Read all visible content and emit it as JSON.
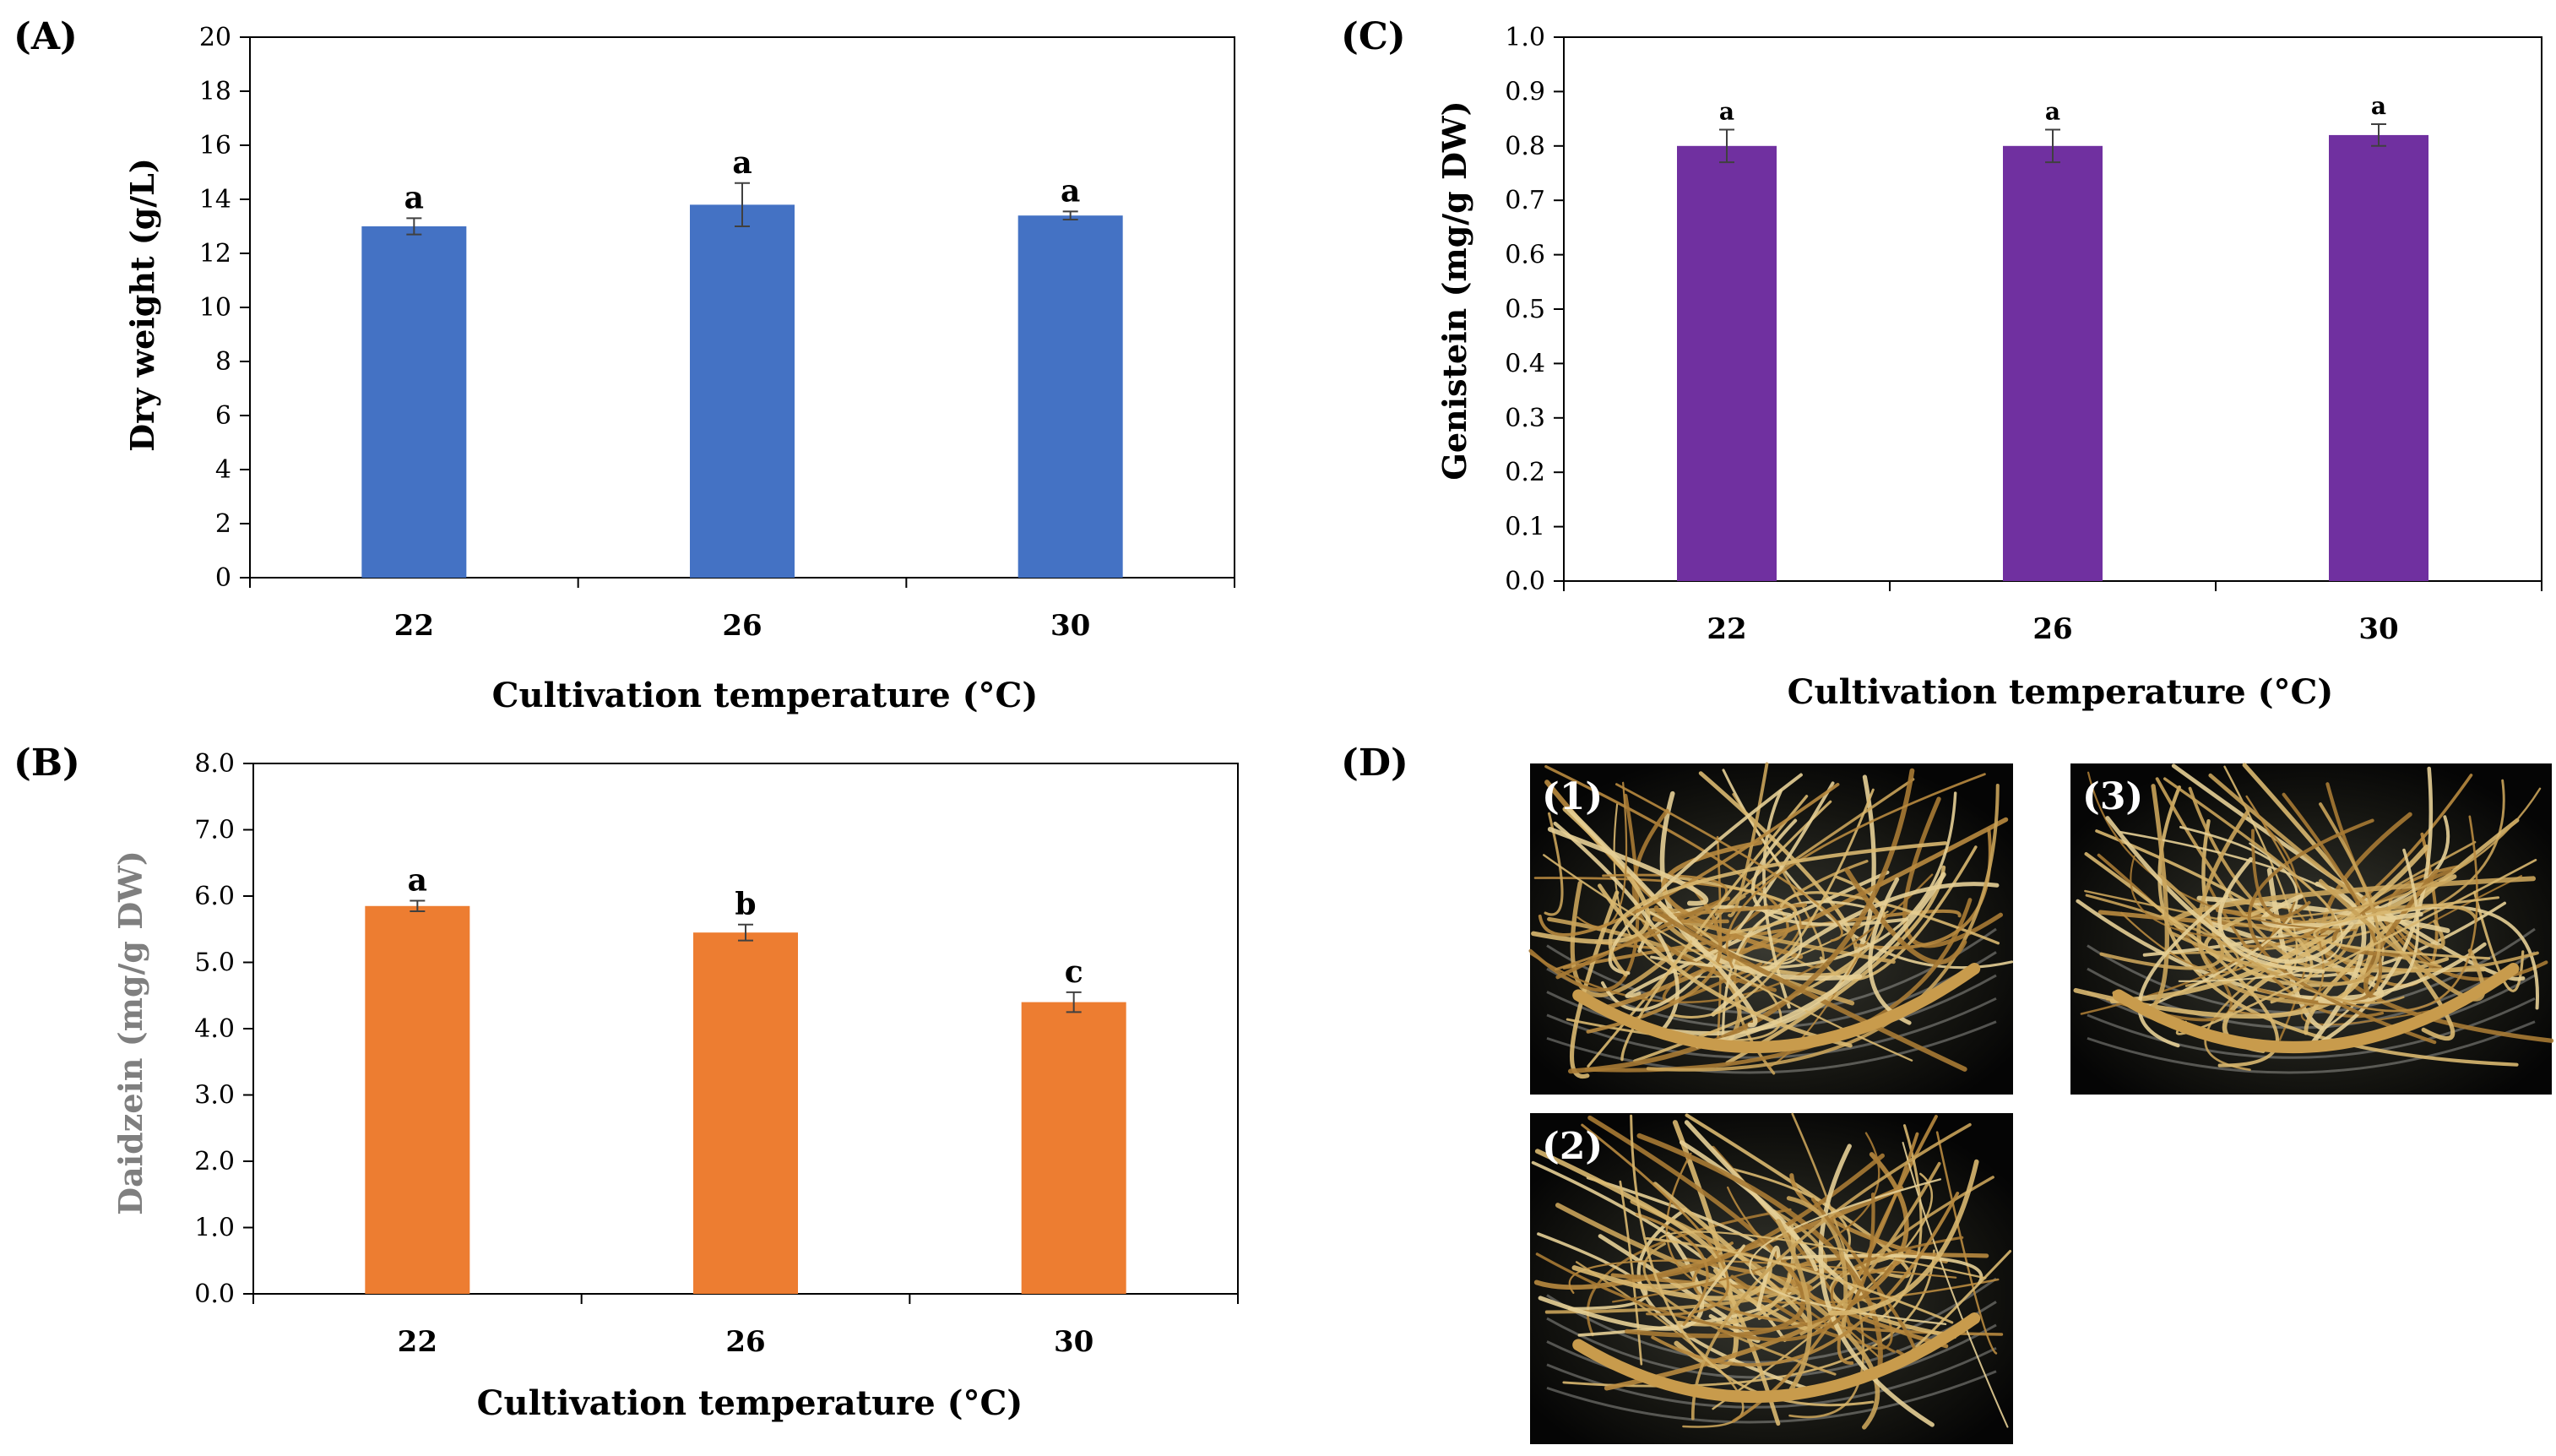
{
  "panel_labels": {
    "a": "(A)",
    "b": "(B)",
    "c": "(C)",
    "d": "(D)"
  },
  "colors": {
    "blue": "#4472c4",
    "orange": "#ed7d31",
    "purple": "#7030a0",
    "axis": "#7f7f7f"
  },
  "chart_data": [
    {
      "type": "bar",
      "title": "",
      "categories": [
        "22",
        "26",
        "30"
      ],
      "values": [
        13.0,
        13.8,
        13.4
      ],
      "errors": [
        0.3,
        0.8,
        0.15
      ],
      "significance": [
        "a",
        "a",
        "a"
      ],
      "ylim": [
        0,
        20
      ],
      "yticks": [
        "0",
        "2",
        "4",
        "6",
        "8",
        "10",
        "12",
        "14",
        "16",
        "18",
        "20"
      ],
      "ylabel": "Dry weight (g/L)",
      "xlabel": "Cultivation temperature (°C)"
    },
    {
      "type": "bar",
      "title": "",
      "categories": [
        "22",
        "26",
        "30"
      ],
      "values": [
        5.85,
        5.45,
        4.4
      ],
      "errors": [
        0.08,
        0.12,
        0.15
      ],
      "significance": [
        "a",
        "b",
        "c"
      ],
      "ylim": [
        0,
        8
      ],
      "yticks": [
        "0.0",
        "1.0",
        "2.0",
        "3.0",
        "4.0",
        "5.0",
        "6.0",
        "7.0",
        "8.0"
      ],
      "ylabel": "Daidzein (mg/g DW)",
      "xlabel": "Cultivation temperature (°C)"
    },
    {
      "type": "bar",
      "title": "",
      "categories": [
        "22",
        "26",
        "30"
      ],
      "values": [
        0.8,
        0.8,
        0.82
      ],
      "errors": [
        0.03,
        0.03,
        0.02
      ],
      "significance": [
        "a",
        "a",
        "a"
      ],
      "ylim": [
        0,
        1
      ],
      "yticks": [
        "0.0",
        "0.1",
        "0.2",
        "0.3",
        "0.4",
        "0.5",
        "0.6",
        "0.7",
        "0.8",
        "0.9",
        "1.0"
      ],
      "ylabel": "Genistein (mg/g DW)",
      "xlabel": "Cultivation temperature (°C)"
    }
  ],
  "photos": {
    "p1": "(1)",
    "p2": "(2)",
    "p3": "(3)"
  }
}
